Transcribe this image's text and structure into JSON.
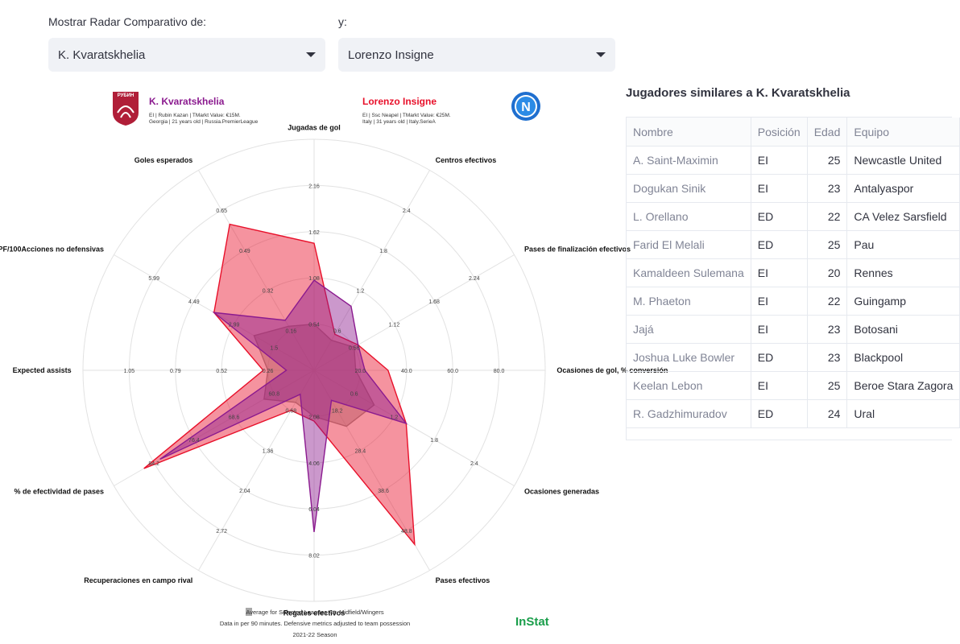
{
  "controls": {
    "label_left": "Mostrar Radar Comparativo de:",
    "label_right": "y:",
    "player1": "K. Kvaratskhelia",
    "player2": "Lorenzo Insigne"
  },
  "radar": {
    "player1": {
      "name": "K. Kvaratskhelia",
      "line1": "EI | Rubin Kazan | TMarkt Value: €15M.",
      "line2": "Georgia | 21 years old | Russia.PremierLeague",
      "color": "#8b1a8f",
      "club_logo_text": "РУБИН"
    },
    "player2": {
      "name": "Lorenzo Insigne",
      "line1": "EI | Ssc Neapel | TMarkt Value: €25M.",
      "line2": "Italy | 31 years old | Italy.SerieA",
      "color": "#e8102a",
      "club_logo_text": "N"
    },
    "axes": [
      {
        "label": "Jugadas de gol",
        "ticks": [
          "0.54",
          "1.08",
          "1.62",
          "2.16"
        ],
        "p1": 0.39,
        "p2": 0.55,
        "avg": 0.2
      },
      {
        "label": "Centros efectivos",
        "ticks": [
          "0.6",
          "1.2",
          "1.8",
          "2.4"
        ],
        "p1": 0.32,
        "p2": 0.18,
        "avg": 0.15
      },
      {
        "label": "Pases de finalización efectivos",
        "ticks": [
          "0.56",
          "1.12",
          "1.68",
          "2.24"
        ],
        "p1": 0.22,
        "p2": 0.22,
        "avg": 0.2
      },
      {
        "label": "Ocasiones de gol, % conversión",
        "ticks": [
          "20.0",
          "40.0",
          "60.0",
          "80.0"
        ],
        "p1": 0.22,
        "p2": 0.32,
        "avg": 0.18
      },
      {
        "label": "Ocasiones generadas",
        "ticks": [
          "0.6",
          "1.2",
          "1.8",
          "2.4"
        ],
        "p1": 0.46,
        "p2": 0.46,
        "avg": 0.3
      },
      {
        "label": "Pases efectivos",
        "ticks": [
          "28.4",
          "38.6",
          "48.8"
        ],
        "p1": 0.15,
        "p2": 0.87,
        "avg": 0.28
      },
      {
        "label": "Regates efectivos",
        "ticks": [
          "2.08",
          "4.06",
          "6.04",
          "8.02"
        ],
        "p1": 0.7,
        "p2": 0.22,
        "avg": 0.2
      },
      {
        "label": "Recuperaciones en campo rival",
        "ticks": [
          "0.68",
          "1.36",
          "2.04",
          "2.72"
        ],
        "p1": 0.12,
        "p2": 0.2,
        "avg": 0.16
      },
      {
        "label": "% de efectividad de pases",
        "ticks": [
          "60.8",
          "68.6",
          "76.4",
          "84.2"
        ],
        "p1": 0.77,
        "p2": 0.85,
        "avg": 0.25
      },
      {
        "label": "Expected assists",
        "ticks": [
          "0.26",
          "0.52",
          "0.79",
          "1.05"
        ],
        "p1": 0.12,
        "p2": 0.22,
        "avg": 0.2
      },
      {
        "label": "PF/100Acciones no defensivas",
        "ticks": [
          "1.5",
          "2.99",
          "4.49",
          "5.99"
        ],
        "p1": 0.5,
        "p2": 0.5,
        "avg": 0.3
      },
      {
        "label": "Goles esperados",
        "ticks": [
          "0.16",
          "0.32",
          "0.49",
          "0.65"
        ],
        "p1": 0.25,
        "p2": 0.73,
        "avg": 0.22
      }
    ],
    "tick_18_2": "18.2",
    "footer": {
      "line1": "Average for Selected Leagues Att. Midfield/Wingers",
      "line2": "Data in per 90 minutes. Defensive metrics adjusted to team possession",
      "line3": "2021-22 Season",
      "brand": "InStat"
    }
  },
  "similar": {
    "title": "Jugadores similares a K. Kvaratskhelia",
    "columns": [
      "Nombre",
      "Posición",
      "Edad",
      "Equipo"
    ],
    "rows": [
      [
        "A. Saint-Maximin",
        "EI",
        "25",
        "Newcastle United"
      ],
      [
        "Dogukan Sinik",
        "EI",
        "23",
        "Antalyaspor"
      ],
      [
        "L. Orellano",
        "ED",
        "22",
        "CA Velez Sarsfield"
      ],
      [
        "Farid El Melali",
        "ED",
        "25",
        "Pau"
      ],
      [
        "Kamaldeen Sulemana",
        "EI",
        "20",
        "Rennes"
      ],
      [
        "M. Phaeton",
        "EI",
        "22",
        "Guingamp"
      ],
      [
        "Jajá",
        "EI",
        "23",
        "Botosani"
      ],
      [
        "Joshua Luke Bowler",
        "ED",
        "23",
        "Blackpool"
      ],
      [
        "Keelan Lebon",
        "EI",
        "25",
        "Beroe Stara Zagora"
      ],
      [
        "R. Gadzhimuradov",
        "ED",
        "24",
        "Ural"
      ]
    ]
  }
}
